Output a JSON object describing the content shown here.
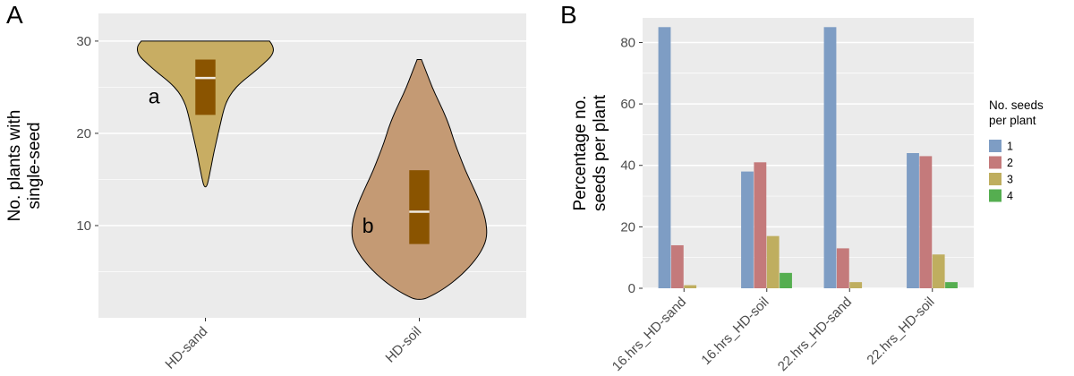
{
  "figure": {
    "panel_a_label": "A",
    "panel_b_label": "B"
  },
  "styles": {
    "background": "#ffffff",
    "panel_bg": "#ebebeb",
    "grid_major": "#ffffff",
    "grid_minor": "#ffffff",
    "axis_text": "#4d4d4d",
    "tick_mark": "#333333"
  },
  "chart_data": [
    {
      "type": "violin",
      "panel": "A",
      "ylabel": "No. plants with\nsingle-seed",
      "ylim": [
        0,
        33
      ],
      "yticks": [
        10,
        20,
        30
      ],
      "yticks_minor": [
        5,
        15,
        25
      ],
      "categories": [
        "HD-sand",
        "HD-soil"
      ],
      "box_fill": "#8a5400",
      "median_color": "#f0e9df",
      "violins": [
        {
          "category": "HD-sand",
          "fill": "#c8ad63",
          "significance_letter": "a",
          "letter_value": 24,
          "min": 14,
          "q1": 22,
          "median": 26,
          "q3": 28,
          "max": 30,
          "profile": [
            [
              30,
              0.3
            ],
            [
              29.4,
              0.32
            ],
            [
              28.5,
              0.315
            ],
            [
              27.5,
              0.27
            ],
            [
              26.5,
              0.22
            ],
            [
              25.5,
              0.165
            ],
            [
              24.5,
              0.125
            ],
            [
              23.5,
              0.1
            ],
            [
              22.5,
              0.085
            ],
            [
              21,
              0.07
            ],
            [
              19.5,
              0.055
            ],
            [
              18,
              0.04
            ],
            [
              16.5,
              0.028
            ],
            [
              15,
              0.015
            ],
            [
              14.2,
              0.006
            ]
          ]
        },
        {
          "category": "HD-soil",
          "fill": "#c49a74",
          "significance_letter": "b",
          "letter_value": 10,
          "min": 2,
          "q1": 8,
          "median": 11.5,
          "q3": 16,
          "max": 28,
          "profile": [
            [
              28,
              0.01
            ],
            [
              26.5,
              0.035
            ],
            [
              25,
              0.06
            ],
            [
              23.5,
              0.09
            ],
            [
              22,
              0.12
            ],
            [
              20.5,
              0.145
            ],
            [
              19,
              0.165
            ],
            [
              17.5,
              0.19
            ],
            [
              16,
              0.215
            ],
            [
              14.5,
              0.245
            ],
            [
              13,
              0.275
            ],
            [
              11.5,
              0.3
            ],
            [
              10,
              0.315
            ],
            [
              8.5,
              0.315
            ],
            [
              7,
              0.285
            ],
            [
              5.5,
              0.235
            ],
            [
              4,
              0.165
            ],
            [
              3,
              0.105
            ],
            [
              2.3,
              0.05
            ],
            [
              2,
              0.02
            ]
          ]
        }
      ]
    },
    {
      "type": "bar",
      "panel": "B",
      "ylabel": "Percentage no.\nseeds per plant",
      "ylim": [
        0,
        88
      ],
      "yticks": [
        0,
        20,
        40,
        60,
        80
      ],
      "yticks_minor": [
        10,
        30,
        50,
        70
      ],
      "categories": [
        "16.hrs_HD-sand",
        "16.hrs_HD-soil",
        "22.hrs_HD-sand",
        "22.hrs_HD-soil"
      ],
      "legend_title": "No. seeds\nper plant",
      "legend_position": "right",
      "series": [
        {
          "name": "1",
          "color": "#7e9dc4",
          "values": [
            85,
            38,
            85,
            44
          ]
        },
        {
          "name": "2",
          "color": "#c47a7b",
          "values": [
            14,
            41,
            13,
            43
          ]
        },
        {
          "name": "3",
          "color": "#bfae5f",
          "values": [
            1,
            17,
            2,
            11
          ]
        },
        {
          "name": "4",
          "color": "#55ae50",
          "values": [
            0,
            5,
            0,
            2
          ]
        }
      ]
    }
  ]
}
